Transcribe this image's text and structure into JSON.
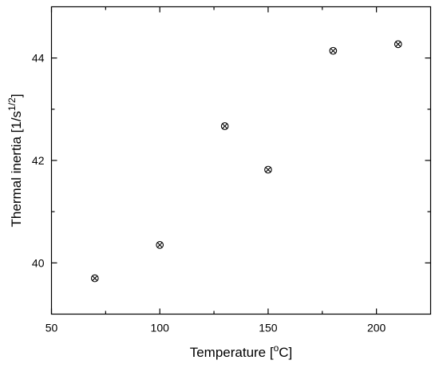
{
  "chart_data": {
    "type": "scatter",
    "title": "",
    "xlabel_parts": {
      "pre": "Temperature [",
      "sup": "o",
      "post": "C]"
    },
    "ylabel_parts": {
      "pre": "Thermal inertia [1/s",
      "sup": "1/2",
      "post": "]"
    },
    "xlim": [
      50,
      225
    ],
    "ylim": [
      39,
      45
    ],
    "x_ticks": [
      50,
      100,
      150,
      200
    ],
    "y_ticks": [
      40,
      42,
      44
    ],
    "x_ticks_display": [
      "50",
      "100",
      "150",
      "200"
    ],
    "y_ticks_display": [
      "40",
      "42",
      "44"
    ],
    "grid": false,
    "marker": "circle-with-x",
    "series": [
      {
        "x": [
          70,
          100,
          130,
          150,
          180,
          210
        ],
        "y": [
          39.7,
          40.35,
          42.67,
          41.82,
          44.14,
          44.27
        ]
      }
    ]
  },
  "colors": {
    "axis": "#000000",
    "marker": "#000000",
    "background": "#ffffff"
  }
}
